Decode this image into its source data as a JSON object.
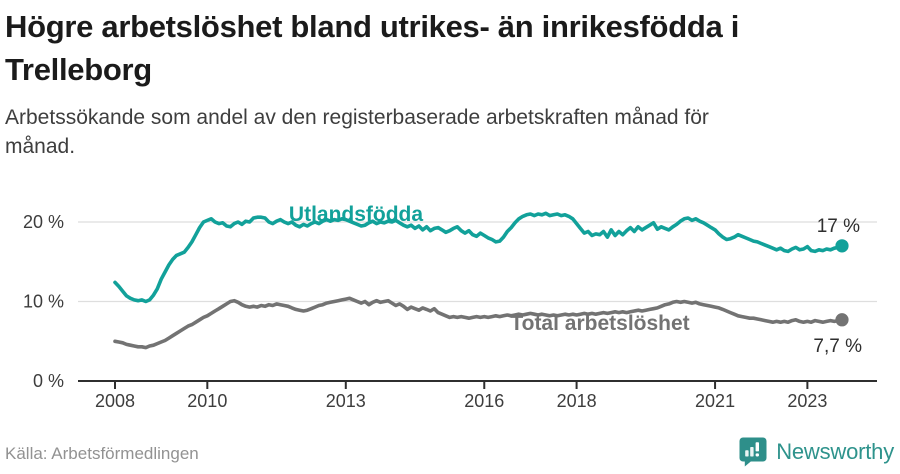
{
  "header": {
    "title": "Högre arbetslöshet bland utrikes- än inrikesfödda i\nTrelleborg",
    "subtitle": "Arbetssökande som andel av den registerbaserade arbetskraften månad för\nmånad."
  },
  "chart_data": {
    "type": "line",
    "unit": "%",
    "x_start": {
      "year": 2008,
      "month": 1
    },
    "x_end": {
      "year": 2023,
      "month": 10
    },
    "x_tick_years": [
      2008,
      2010,
      2013,
      2016,
      2018,
      2021,
      2023
    ],
    "y_ticks": [
      {
        "value": 0,
        "label": "0 %"
      },
      {
        "value": 10,
        "label": "10 %"
      },
      {
        "value": 20,
        "label": "20 %"
      }
    ],
    "ylim": [
      0,
      22.5
    ],
    "grid": "horizontal",
    "legend_position": "inline-labels",
    "colors": {
      "grid": "#dedede",
      "axis": "#2f2f2f",
      "tick_text": "#3d3d3d",
      "annotation_text": "#2e2e2e"
    },
    "series": [
      {
        "name": "Utlandsfödda",
        "color": "#12A19A",
        "end_label": "17 %",
        "end_value": 17,
        "values": [
          12.4,
          11.9,
          11.3,
          10.7,
          10.4,
          10.2,
          10.1,
          10.2,
          10.0,
          10.2,
          10.8,
          11.6,
          12.8,
          13.7,
          14.6,
          15.3,
          15.8,
          16.0,
          16.2,
          16.8,
          17.5,
          18.4,
          19.3,
          20.0,
          20.2,
          20.4,
          20.0,
          19.8,
          19.9,
          19.5,
          19.4,
          19.8,
          20.0,
          19.7,
          20.1,
          20.0,
          20.5,
          20.6,
          20.6,
          20.5,
          20.0,
          19.8,
          20.1,
          20.3,
          20.0,
          19.8,
          20.0,
          19.6,
          19.4,
          19.7,
          19.5,
          19.8,
          20.0,
          19.8,
          20.1,
          20.3,
          20.1,
          20.3,
          20.2,
          20.4,
          20.3,
          20.1,
          19.9,
          19.7,
          19.5,
          19.6,
          19.9,
          20.1,
          19.8,
          20.0,
          19.9,
          20.1,
          20.0,
          20.2,
          19.9,
          19.6,
          19.4,
          19.6,
          19.2,
          19.5,
          19.0,
          19.4,
          18.9,
          19.2,
          19.3,
          19.0,
          18.7,
          18.9,
          19.2,
          19.4,
          18.9,
          18.6,
          18.9,
          18.4,
          18.2,
          18.6,
          18.3,
          18.0,
          17.8,
          17.5,
          17.6,
          18.1,
          18.8,
          19.3,
          19.9,
          20.4,
          20.7,
          20.9,
          21.0,
          20.8,
          21.0,
          20.9,
          21.1,
          20.8,
          20.9,
          21.0,
          20.8,
          20.9,
          20.7,
          20.4,
          19.8,
          19.2,
          18.6,
          18.8,
          18.3,
          18.5,
          18.4,
          18.8,
          18.1,
          19.0,
          18.3,
          18.8,
          18.4,
          18.9,
          19.3,
          18.8,
          19.4,
          19.0,
          19.3,
          19.6,
          19.9,
          19.1,
          19.4,
          19.2,
          19.0,
          19.4,
          19.7,
          20.1,
          20.4,
          20.5,
          20.2,
          20.4,
          20.1,
          19.9,
          19.6,
          19.3,
          19.0,
          18.5,
          18.1,
          17.8,
          17.9,
          18.1,
          18.4,
          18.2,
          18.0,
          17.8,
          17.6,
          17.5,
          17.3,
          17.1,
          16.9,
          16.7,
          16.5,
          16.7,
          16.4,
          16.3,
          16.6,
          16.8,
          16.5,
          16.6,
          16.9,
          16.4,
          16.3,
          16.5,
          16.4,
          16.6,
          16.5,
          16.7,
          16.8,
          17.0
        ]
      },
      {
        "name": "Total arbetslöshet",
        "color": "#737373",
        "end_label": "7,7 %",
        "end_value": 7.7,
        "values": [
          5.0,
          4.9,
          4.8,
          4.6,
          4.5,
          4.4,
          4.3,
          4.3,
          4.2,
          4.4,
          4.5,
          4.7,
          4.9,
          5.1,
          5.4,
          5.7,
          6.0,
          6.3,
          6.6,
          6.9,
          7.1,
          7.4,
          7.7,
          8.0,
          8.2,
          8.5,
          8.8,
          9.1,
          9.4,
          9.7,
          10.0,
          10.1,
          9.9,
          9.6,
          9.4,
          9.3,
          9.4,
          9.3,
          9.5,
          9.4,
          9.6,
          9.5,
          9.7,
          9.6,
          9.5,
          9.4,
          9.2,
          9.0,
          8.9,
          8.8,
          8.9,
          9.1,
          9.3,
          9.5,
          9.6,
          9.8,
          9.9,
          10.0,
          10.1,
          10.2,
          10.3,
          10.4,
          10.2,
          10.0,
          9.8,
          10.0,
          9.6,
          9.9,
          10.1,
          9.9,
          10.0,
          10.1,
          9.8,
          9.5,
          9.7,
          9.4,
          9.0,
          9.3,
          9.1,
          8.9,
          9.2,
          9.0,
          8.8,
          9.1,
          8.6,
          8.4,
          8.2,
          8.0,
          8.1,
          8.0,
          8.1,
          8.0,
          7.9,
          8.0,
          8.1,
          8.0,
          8.1,
          8.0,
          8.1,
          8.2,
          8.1,
          8.2,
          8.3,
          8.2,
          8.3,
          8.4,
          8.3,
          8.4,
          8.5,
          8.4,
          8.3,
          8.4,
          8.3,
          8.2,
          8.3,
          8.2,
          8.3,
          8.4,
          8.3,
          8.4,
          8.3,
          8.4,
          8.5,
          8.4,
          8.5,
          8.4,
          8.5,
          8.6,
          8.5,
          8.6,
          8.7,
          8.6,
          8.7,
          8.6,
          8.7,
          8.8,
          8.9,
          8.8,
          8.9,
          9.0,
          9.1,
          9.2,
          9.4,
          9.6,
          9.7,
          9.9,
          10.0,
          9.9,
          10.0,
          9.9,
          9.8,
          9.9,
          9.7,
          9.6,
          9.5,
          9.4,
          9.3,
          9.2,
          9.0,
          8.8,
          8.6,
          8.4,
          8.2,
          8.1,
          8.0,
          7.9,
          7.9,
          7.8,
          7.7,
          7.6,
          7.5,
          7.4,
          7.5,
          7.4,
          7.5,
          7.4,
          7.6,
          7.7,
          7.5,
          7.4,
          7.5,
          7.4,
          7.6,
          7.5,
          7.4,
          7.5,
          7.6,
          7.5,
          7.6,
          7.7
        ]
      }
    ]
  },
  "footer": {
    "source": "Källa: Arbetsförmedlingen",
    "brand": "Newsworthy",
    "brand_color": "#2E938C",
    "brand_icon": "newsworthy-pin-barchart-icon",
    "brand_icon_color": "#2E8F8A"
  }
}
